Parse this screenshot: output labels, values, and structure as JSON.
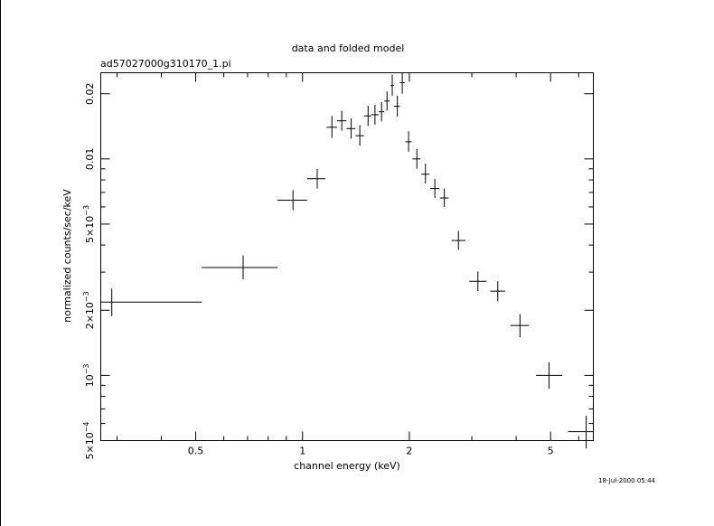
{
  "chart_data": {
    "type": "scatter",
    "title": "data and folded model",
    "subtitle": "ad57027000g310170_1.pi",
    "xlabel": "channel energy (keV)",
    "ylabel": "normalized counts/sec/keV",
    "x_scale": "log",
    "y_scale": "log",
    "xlim": [
      0.27,
      6.6
    ],
    "ylim": [
      0.0005,
      0.025
    ],
    "x_ticks": [
      {
        "value": 0.5,
        "label": "0.5"
      },
      {
        "value": 1,
        "label": "1"
      },
      {
        "value": 2,
        "label": "2"
      },
      {
        "value": 5,
        "label": "5"
      }
    ],
    "y_ticks": [
      {
        "value": 0.0005,
        "mantissa": "5×10",
        "exponent": "−4"
      },
      {
        "value": 0.001,
        "mantissa": "10",
        "exponent": "−3"
      },
      {
        "value": 0.002,
        "mantissa": "2×10",
        "exponent": "−3"
      },
      {
        "value": 0.005,
        "mantissa": "5×10",
        "exponent": "−3"
      },
      {
        "value": 0.01,
        "mantissa": "0.01",
        "exponent": ""
      },
      {
        "value": 0.02,
        "mantissa": "0.02",
        "exponent": ""
      }
    ],
    "grid": false,
    "legend": "none",
    "timestamp": "18-Jul-2000 05:44",
    "series": [
      {
        "marker": "crosshair-errorbar",
        "points": [
          {
            "x": 0.29,
            "xlo": 0.27,
            "xhi": 0.52,
            "y": 0.00218,
            "ylo": 0.00188,
            "yhi": 0.00252
          },
          {
            "x": 0.68,
            "xlo": 0.52,
            "xhi": 0.85,
            "y": 0.00315,
            "ylo": 0.00278,
            "yhi": 0.00358
          },
          {
            "x": 0.94,
            "xlo": 0.85,
            "xhi": 1.03,
            "y": 0.00645,
            "ylo": 0.0058,
            "yhi": 0.00718
          },
          {
            "x": 1.1,
            "xlo": 1.03,
            "xhi": 1.16,
            "y": 0.0081,
            "ylo": 0.0073,
            "yhi": 0.009
          },
          {
            "x": 1.21,
            "xlo": 1.17,
            "xhi": 1.25,
            "y": 0.014,
            "ylo": 0.0125,
            "yhi": 0.0158
          },
          {
            "x": 1.29,
            "xlo": 1.25,
            "xhi": 1.33,
            "y": 0.015,
            "ylo": 0.0135,
            "yhi": 0.0167
          },
          {
            "x": 1.37,
            "xlo": 1.33,
            "xhi": 1.41,
            "y": 0.0138,
            "ylo": 0.0124,
            "yhi": 0.0154
          },
          {
            "x": 1.45,
            "xlo": 1.41,
            "xhi": 1.49,
            "y": 0.0128,
            "ylo": 0.0115,
            "yhi": 0.0143
          },
          {
            "x": 1.53,
            "xlo": 1.49,
            "xhi": 1.56,
            "y": 0.0158,
            "ylo": 0.0142,
            "yhi": 0.0176
          },
          {
            "x": 1.6,
            "xlo": 1.56,
            "xhi": 1.64,
            "y": 0.016,
            "ylo": 0.0144,
            "yhi": 0.0178
          },
          {
            "x": 1.67,
            "xlo": 1.64,
            "xhi": 1.7,
            "y": 0.0165,
            "ylo": 0.0149,
            "yhi": 0.0183
          },
          {
            "x": 1.73,
            "xlo": 1.7,
            "xhi": 1.76,
            "y": 0.0185,
            "ylo": 0.0167,
            "yhi": 0.0205
          },
          {
            "x": 1.79,
            "xlo": 1.77,
            "xhi": 1.81,
            "y": 0.0218,
            "ylo": 0.0196,
            "yhi": 0.0245
          },
          {
            "x": 1.85,
            "xlo": 1.81,
            "xhi": 1.88,
            "y": 0.0175,
            "ylo": 0.0157,
            "yhi": 0.0196
          },
          {
            "x": 1.91,
            "xlo": 1.88,
            "xhi": 1.94,
            "y": 0.0225,
            "ylo": 0.02,
            "yhi": 0.025
          },
          {
            "x": 1.99,
            "xlo": 1.95,
            "xhi": 2.03,
            "y": 0.012,
            "ylo": 0.0108,
            "yhi": 0.0134
          },
          {
            "x": 2.1,
            "xlo": 2.04,
            "xhi": 2.15,
            "y": 0.01,
            "ylo": 0.009,
            "yhi": 0.0111
          },
          {
            "x": 2.22,
            "xlo": 2.16,
            "xhi": 2.28,
            "y": 0.0085,
            "ylo": 0.0077,
            "yhi": 0.0095
          },
          {
            "x": 2.36,
            "xlo": 2.29,
            "xhi": 2.43,
            "y": 0.0073,
            "ylo": 0.0066,
            "yhi": 0.0081
          },
          {
            "x": 2.51,
            "xlo": 2.44,
            "xhi": 2.58,
            "y": 0.0066,
            "ylo": 0.006,
            "yhi": 0.0073
          },
          {
            "x": 2.75,
            "xlo": 2.63,
            "xhi": 2.88,
            "y": 0.0042,
            "ylo": 0.0038,
            "yhi": 0.00465
          },
          {
            "x": 3.12,
            "xlo": 2.95,
            "xhi": 3.3,
            "y": 0.00272,
            "ylo": 0.00245,
            "yhi": 0.00302
          },
          {
            "x": 3.55,
            "xlo": 3.38,
            "xhi": 3.72,
            "y": 0.00245,
            "ylo": 0.0022,
            "yhi": 0.00272
          },
          {
            "x": 4.1,
            "xlo": 3.85,
            "xhi": 4.35,
            "y": 0.0017,
            "ylo": 0.0015,
            "yhi": 0.00192
          },
          {
            "x": 4.95,
            "xlo": 4.55,
            "xhi": 5.4,
            "y": 0.001,
            "ylo": 0.00087,
            "yhi": 0.00115
          },
          {
            "x": 6.3,
            "xlo": 5.6,
            "xhi": 6.6,
            "y": 0.00055,
            "ylo": 0.00046,
            "yhi": 0.00065
          }
        ]
      }
    ]
  }
}
